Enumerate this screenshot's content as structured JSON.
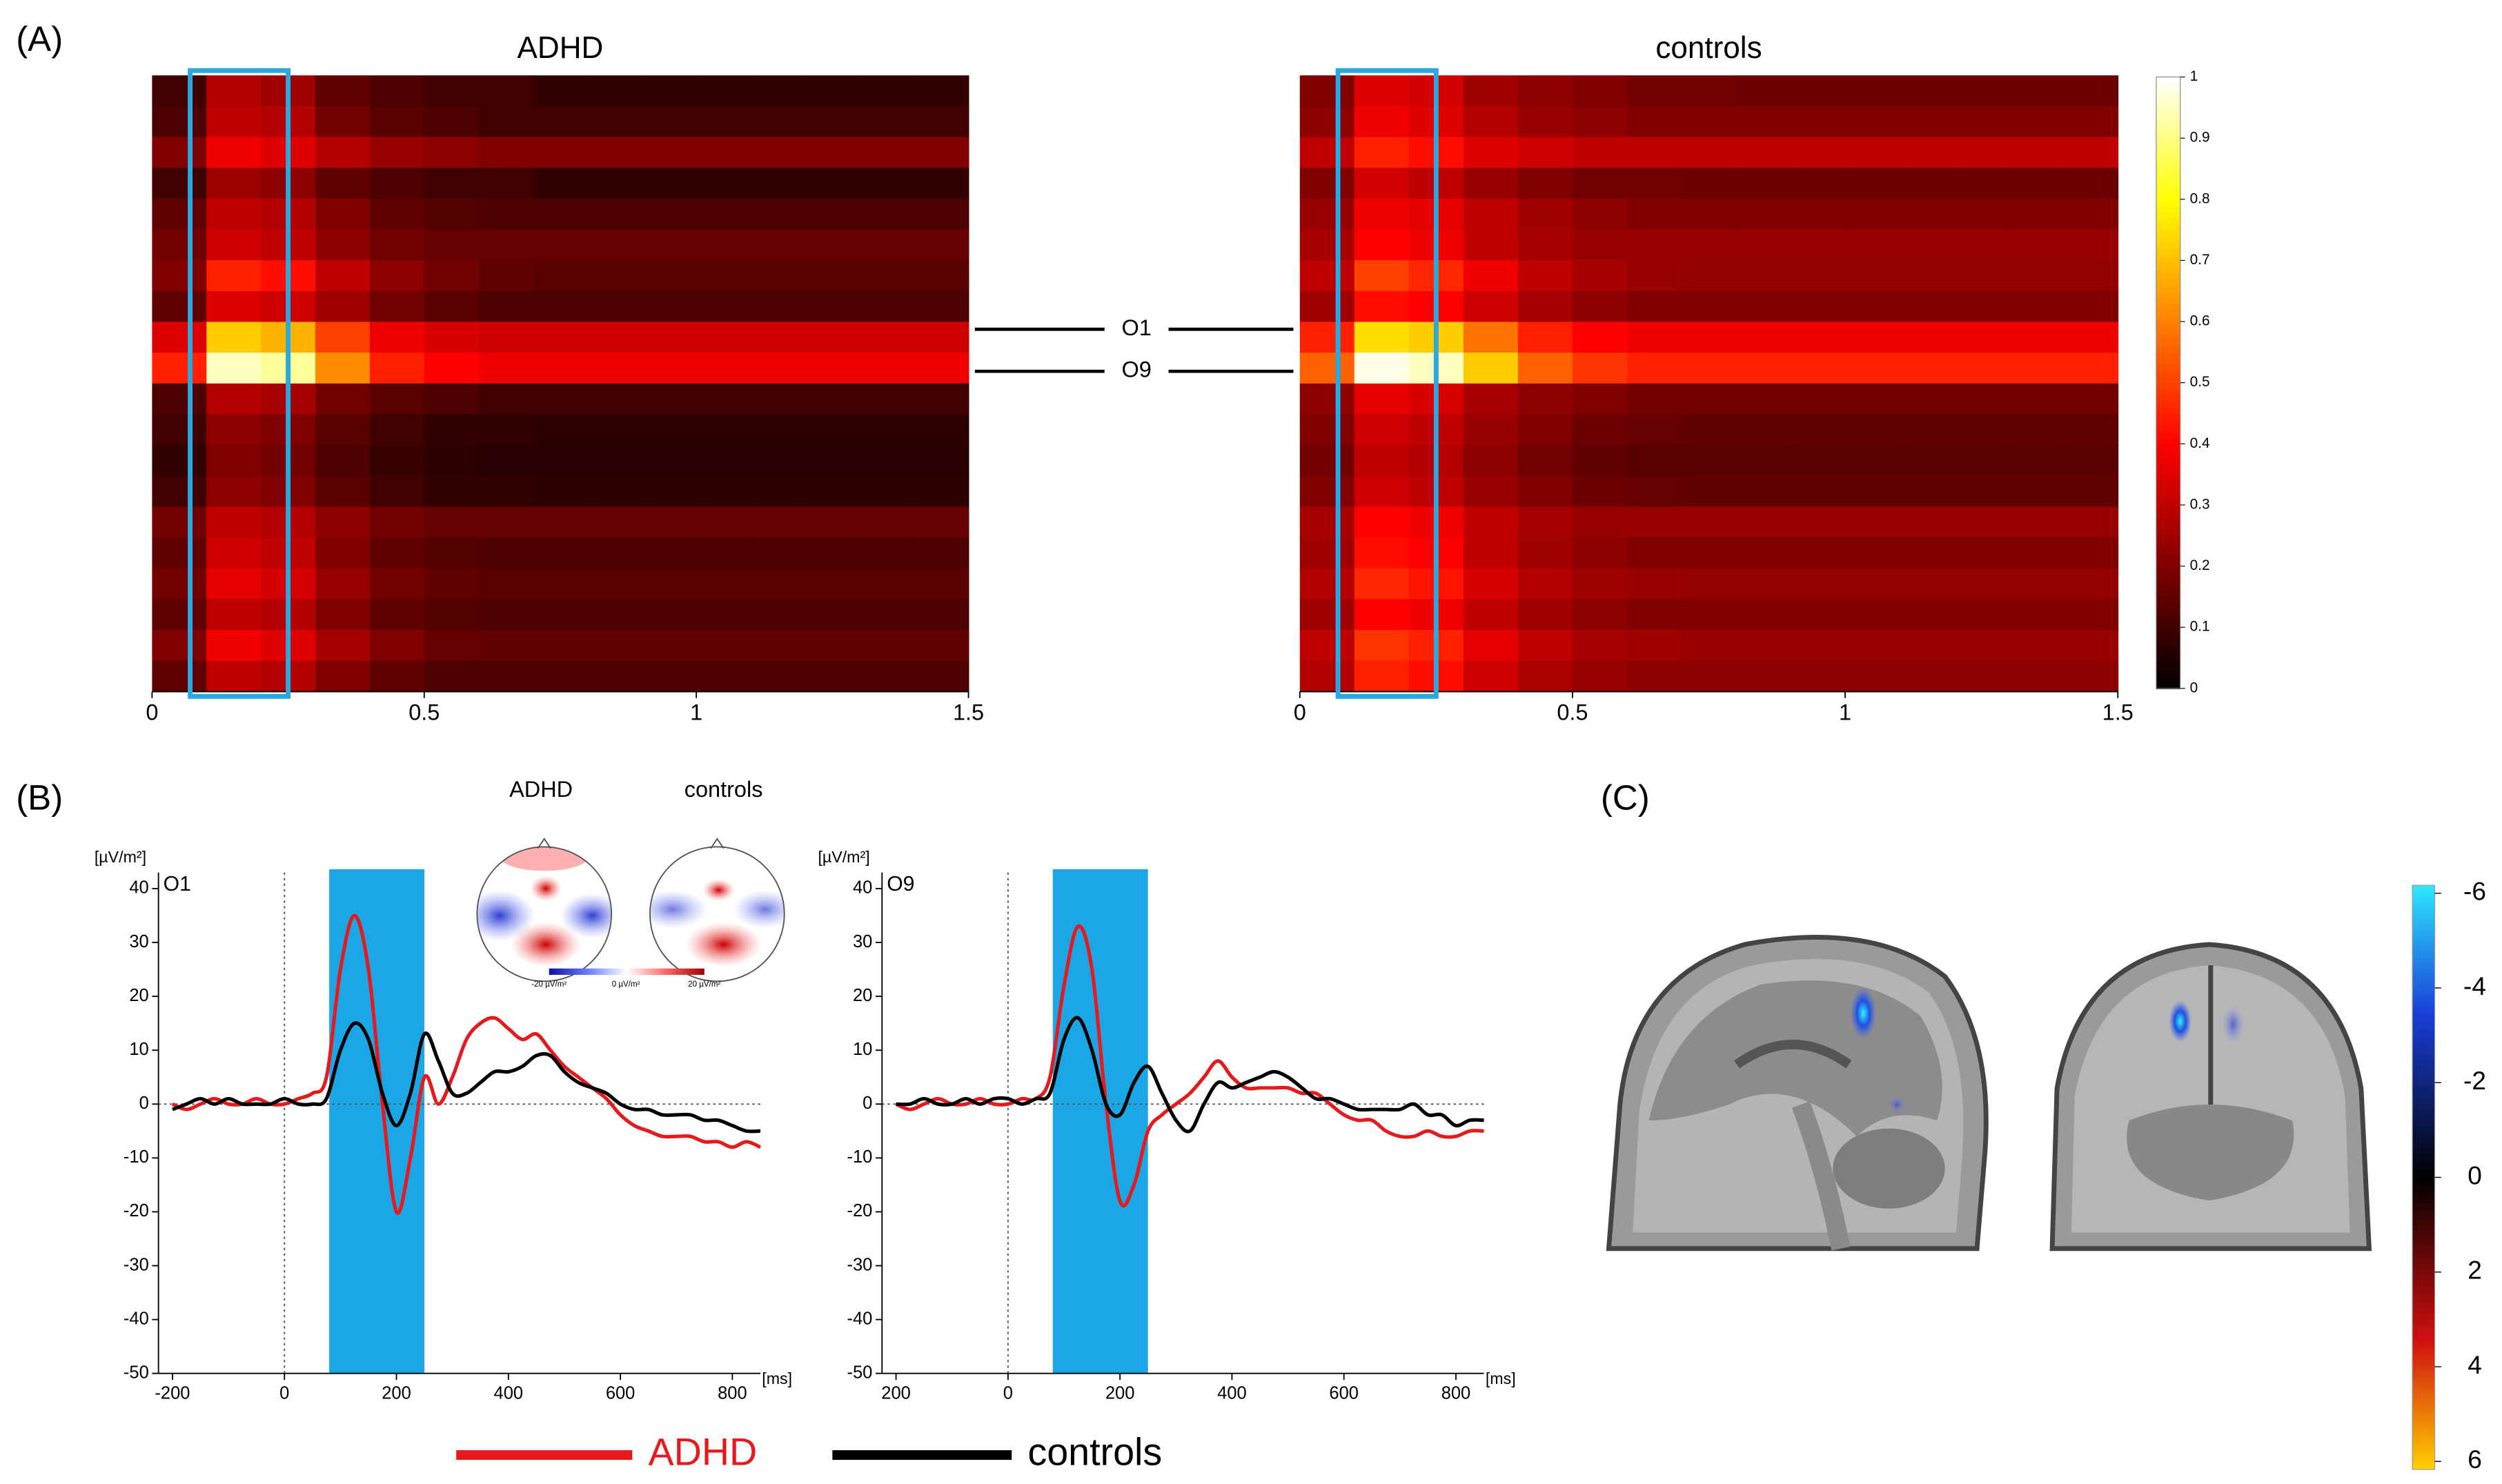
{
  "panels": [
    "(A)",
    "(B)",
    "(C)"
  ],
  "chart_data": [
    {
      "type": "heatmap",
      "title": "ADHD",
      "xlim": [
        0,
        1.5
      ],
      "xticks": [
        0,
        0.5,
        1,
        1.5
      ],
      "zlim": [
        0,
        1
      ],
      "highlight": [
        0.07,
        0.25
      ],
      "categories": [
        null,
        null,
        null,
        null,
        null,
        null,
        null,
        null,
        "O1",
        "O9",
        null,
        null,
        null,
        null,
        null,
        null,
        null,
        null,
        null,
        null
      ],
      "z": [
        [
          0.1,
          0.28,
          0.25,
          0.15,
          0.12,
          0.1,
          0.1,
          0.08,
          0.08,
          0.08,
          0.08,
          0.08,
          0.08,
          0.08,
          0.08
        ],
        [
          0.12,
          0.3,
          0.28,
          0.18,
          0.14,
          0.12,
          0.1,
          0.1,
          0.1,
          0.1,
          0.1,
          0.1,
          0.1,
          0.1,
          0.1
        ],
        [
          0.2,
          0.38,
          0.35,
          0.28,
          0.24,
          0.22,
          0.2,
          0.2,
          0.2,
          0.2,
          0.2,
          0.2,
          0.2,
          0.2,
          0.2
        ],
        [
          0.1,
          0.25,
          0.22,
          0.15,
          0.12,
          0.1,
          0.1,
          0.08,
          0.08,
          0.08,
          0.08,
          0.08,
          0.08,
          0.08,
          0.08
        ],
        [
          0.15,
          0.3,
          0.28,
          0.2,
          0.15,
          0.13,
          0.12,
          0.12,
          0.12,
          0.12,
          0.12,
          0.12,
          0.12,
          0.12,
          0.12
        ],
        [
          0.18,
          0.32,
          0.3,
          0.22,
          0.18,
          0.16,
          0.16,
          0.16,
          0.16,
          0.16,
          0.16,
          0.16,
          0.16,
          0.16,
          0.16
        ],
        [
          0.2,
          0.45,
          0.42,
          0.3,
          0.22,
          0.18,
          0.15,
          0.14,
          0.14,
          0.14,
          0.14,
          0.14,
          0.14,
          0.14,
          0.14
        ],
        [
          0.15,
          0.35,
          0.32,
          0.25,
          0.18,
          0.14,
          0.12,
          0.12,
          0.12,
          0.12,
          0.12,
          0.12,
          0.12,
          0.12,
          0.12
        ],
        [
          0.35,
          0.72,
          0.68,
          0.5,
          0.38,
          0.34,
          0.32,
          0.32,
          0.32,
          0.32,
          0.32,
          0.32,
          0.32,
          0.32,
          0.32
        ],
        [
          0.45,
          0.95,
          0.92,
          0.62,
          0.45,
          0.4,
          0.38,
          0.38,
          0.38,
          0.38,
          0.38,
          0.38,
          0.38,
          0.38,
          0.38
        ],
        [
          0.12,
          0.28,
          0.26,
          0.18,
          0.14,
          0.12,
          0.1,
          0.1,
          0.1,
          0.1,
          0.1,
          0.1,
          0.1,
          0.1,
          0.1
        ],
        [
          0.1,
          0.22,
          0.2,
          0.14,
          0.1,
          0.08,
          0.08,
          0.07,
          0.07,
          0.07,
          0.07,
          0.07,
          0.07,
          0.07,
          0.07
        ],
        [
          0.08,
          0.2,
          0.18,
          0.12,
          0.09,
          0.07,
          0.06,
          0.06,
          0.06,
          0.06,
          0.06,
          0.06,
          0.06,
          0.06,
          0.06
        ],
        [
          0.1,
          0.22,
          0.2,
          0.14,
          0.1,
          0.08,
          0.08,
          0.07,
          0.07,
          0.07,
          0.07,
          0.07,
          0.07,
          0.07,
          0.07
        ],
        [
          0.18,
          0.3,
          0.28,
          0.22,
          0.18,
          0.16,
          0.16,
          0.16,
          0.16,
          0.16,
          0.16,
          0.16,
          0.16,
          0.16,
          0.16
        ],
        [
          0.15,
          0.32,
          0.3,
          0.2,
          0.15,
          0.13,
          0.12,
          0.12,
          0.12,
          0.12,
          0.12,
          0.12,
          0.12,
          0.12,
          0.12
        ],
        [
          0.18,
          0.36,
          0.33,
          0.24,
          0.18,
          0.15,
          0.14,
          0.14,
          0.14,
          0.14,
          0.14,
          0.14,
          0.14,
          0.14,
          0.14
        ],
        [
          0.15,
          0.3,
          0.28,
          0.2,
          0.15,
          0.13,
          0.12,
          0.12,
          0.12,
          0.12,
          0.12,
          0.12,
          0.12,
          0.12,
          0.12
        ],
        [
          0.2,
          0.38,
          0.35,
          0.26,
          0.2,
          0.16,
          0.15,
          0.15,
          0.15,
          0.15,
          0.15,
          0.15,
          0.15,
          0.15,
          0.15
        ],
        [
          0.15,
          0.3,
          0.28,
          0.2,
          0.15,
          0.12,
          0.12,
          0.12,
          0.12,
          0.12,
          0.12,
          0.12,
          0.12,
          0.12,
          0.12
        ]
      ]
    },
    {
      "type": "heatmap",
      "title": "controls",
      "xlim": [
        0,
        1.5
      ],
      "xticks": [
        0,
        0.5,
        1,
        1.5
      ],
      "zlim": [
        0,
        1
      ],
      "zticks": [
        0,
        0.1,
        0.2,
        0.3,
        0.4,
        0.5,
        0.6,
        0.7,
        0.8,
        0.9,
        1
      ],
      "highlight": [
        0.07,
        0.25
      ],
      "z": [
        [
          0.2,
          0.35,
          0.33,
          0.25,
          0.22,
          0.2,
          0.18,
          0.18,
          0.17,
          0.17,
          0.17,
          0.17,
          0.17,
          0.17,
          0.17
        ],
        [
          0.22,
          0.38,
          0.35,
          0.28,
          0.24,
          0.22,
          0.2,
          0.2,
          0.2,
          0.2,
          0.2,
          0.2,
          0.2,
          0.2,
          0.2
        ],
        [
          0.3,
          0.45,
          0.42,
          0.35,
          0.32,
          0.3,
          0.3,
          0.3,
          0.3,
          0.3,
          0.3,
          0.3,
          0.3,
          0.3,
          0.3
        ],
        [
          0.2,
          0.33,
          0.3,
          0.24,
          0.2,
          0.18,
          0.18,
          0.17,
          0.17,
          0.17,
          0.17,
          0.17,
          0.17,
          0.17,
          0.17
        ],
        [
          0.24,
          0.38,
          0.36,
          0.3,
          0.25,
          0.22,
          0.2,
          0.2,
          0.2,
          0.2,
          0.2,
          0.2,
          0.2,
          0.2,
          0.2
        ],
        [
          0.26,
          0.4,
          0.38,
          0.3,
          0.26,
          0.24,
          0.24,
          0.24,
          0.24,
          0.24,
          0.24,
          0.24,
          0.24,
          0.24,
          0.24
        ],
        [
          0.3,
          0.5,
          0.46,
          0.38,
          0.3,
          0.26,
          0.24,
          0.23,
          0.23,
          0.23,
          0.23,
          0.23,
          0.23,
          0.23,
          0.23
        ],
        [
          0.25,
          0.42,
          0.4,
          0.32,
          0.26,
          0.22,
          0.2,
          0.2,
          0.2,
          0.2,
          0.2,
          0.2,
          0.2,
          0.2,
          0.2
        ],
        [
          0.45,
          0.75,
          0.72,
          0.58,
          0.45,
          0.4,
          0.38,
          0.38,
          0.38,
          0.38,
          0.38,
          0.38,
          0.38,
          0.38,
          0.38
        ],
        [
          0.55,
          0.98,
          0.95,
          0.72,
          0.55,
          0.48,
          0.45,
          0.45,
          0.45,
          0.45,
          0.45,
          0.45,
          0.45,
          0.45,
          0.45
        ],
        [
          0.22,
          0.36,
          0.34,
          0.26,
          0.22,
          0.2,
          0.18,
          0.18,
          0.18,
          0.18,
          0.18,
          0.18,
          0.18,
          0.18,
          0.18
        ],
        [
          0.2,
          0.32,
          0.3,
          0.24,
          0.2,
          0.17,
          0.16,
          0.15,
          0.15,
          0.15,
          0.15,
          0.15,
          0.15,
          0.15,
          0.15
        ],
        [
          0.18,
          0.3,
          0.28,
          0.22,
          0.18,
          0.15,
          0.14,
          0.14,
          0.14,
          0.14,
          0.14,
          0.14,
          0.14,
          0.14,
          0.14
        ],
        [
          0.2,
          0.32,
          0.3,
          0.24,
          0.2,
          0.17,
          0.16,
          0.15,
          0.15,
          0.15,
          0.15,
          0.15,
          0.15,
          0.15,
          0.15
        ],
        [
          0.26,
          0.4,
          0.38,
          0.3,
          0.26,
          0.24,
          0.24,
          0.24,
          0.24,
          0.24,
          0.24,
          0.24,
          0.24,
          0.24,
          0.24
        ],
        [
          0.25,
          0.42,
          0.4,
          0.3,
          0.25,
          0.22,
          0.2,
          0.2,
          0.2,
          0.2,
          0.2,
          0.2,
          0.2,
          0.2,
          0.2
        ],
        [
          0.28,
          0.46,
          0.43,
          0.34,
          0.28,
          0.25,
          0.24,
          0.23,
          0.23,
          0.23,
          0.23,
          0.23,
          0.23,
          0.23,
          0.23
        ],
        [
          0.25,
          0.4,
          0.38,
          0.3,
          0.25,
          0.22,
          0.2,
          0.2,
          0.2,
          0.2,
          0.2,
          0.2,
          0.2,
          0.2,
          0.2
        ],
        [
          0.3,
          0.48,
          0.45,
          0.36,
          0.3,
          0.26,
          0.25,
          0.24,
          0.24,
          0.24,
          0.24,
          0.24,
          0.24,
          0.24,
          0.24
        ],
        [
          0.28,
          0.45,
          0.42,
          0.32,
          0.27,
          0.24,
          0.22,
          0.22,
          0.22,
          0.22,
          0.22,
          0.22,
          0.22,
          0.22,
          0.22
        ]
      ]
    },
    {
      "type": "line",
      "title": "O1",
      "ylabel": "[µV/m²]",
      "xlabel": "[ms]",
      "xlim": [
        -225,
        850
      ],
      "ylim": [
        -50,
        43
      ],
      "xticks": [
        -200,
        0,
        200,
        400,
        600,
        800
      ],
      "yticks": [
        -50,
        -40,
        -30,
        -20,
        -10,
        0,
        10,
        20,
        30,
        40
      ],
      "highlight": [
        80,
        250
      ],
      "inset": {
        "titles": [
          "ADHD",
          "controls"
        ],
        "scale_labels": [
          "-20 µV/m²",
          "0 µV/m²",
          "20 µV/m²"
        ]
      },
      "x": [
        -200,
        -175,
        -150,
        -125,
        -100,
        -75,
        -50,
        -25,
        0,
        25,
        50,
        75,
        100,
        125,
        150,
        175,
        200,
        225,
        250,
        275,
        300,
        325,
        350,
        375,
        400,
        425,
        450,
        475,
        500,
        525,
        550,
        575,
        600,
        625,
        650,
        675,
        700,
        725,
        750,
        775,
        800,
        825,
        850
      ],
      "series": [
        {
          "name": "ADHD",
          "color": "#e8191c",
          "values": [
            0,
            -1,
            0,
            1,
            0,
            0,
            1,
            0,
            0,
            1,
            2,
            5,
            25,
            35,
            25,
            0,
            -20,
            -10,
            5,
            0,
            5,
            12,
            15,
            16,
            14,
            12,
            13,
            10,
            7,
            5,
            3,
            1,
            -2,
            -4,
            -5,
            -6,
            -6,
            -6,
            -7,
            -7,
            -8,
            -7,
            -8
          ]
        },
        {
          "name": "controls",
          "color": "#000000",
          "values": [
            -1,
            0,
            1,
            0,
            1,
            0,
            0,
            0,
            1,
            0,
            0,
            1,
            10,
            15,
            12,
            2,
            -4,
            2,
            13,
            8,
            2,
            2,
            4,
            6,
            6,
            7,
            9,
            9,
            6,
            4,
            3,
            2,
            0,
            -1,
            -1,
            -2,
            -2,
            -2,
            -3,
            -3,
            -4,
            -5,
            -5
          ]
        }
      ]
    },
    {
      "type": "line",
      "title": "O9",
      "ylabel": "[µV/m²]",
      "xlabel": "[ms]",
      "xlim": [
        -225,
        850
      ],
      "ylim": [
        -50,
        43
      ],
      "xticks": [
        {
          "value": -200,
          "label": "200"
        },
        0,
        200,
        400,
        600,
        800
      ],
      "yticks": [
        -50,
        -40,
        -30,
        -20,
        -10,
        0,
        10,
        20,
        30,
        40
      ],
      "highlight": [
        80,
        250
      ],
      "x": [
        -200,
        -175,
        -150,
        -125,
        -100,
        -75,
        -50,
        -25,
        0,
        25,
        50,
        75,
        100,
        125,
        150,
        175,
        200,
        225,
        250,
        275,
        300,
        325,
        350,
        375,
        400,
        425,
        450,
        475,
        500,
        525,
        550,
        575,
        600,
        625,
        650,
        675,
        700,
        725,
        750,
        775,
        800,
        825,
        850
      ],
      "series": [
        {
          "color": "#e8191c",
          "values": [
            0,
            -1,
            0,
            1,
            0,
            0,
            1,
            0,
            0,
            1,
            1,
            5,
            22,
            33,
            25,
            0,
            -18,
            -15,
            -5,
            -2,
            0,
            2,
            5,
            8,
            5,
            3,
            3,
            3,
            3,
            2,
            2,
            0,
            -2,
            -3,
            -3,
            -5,
            -6,
            -6,
            -5,
            -6,
            -6,
            -5,
            -5
          ]
        },
        {
          "color": "#000000",
          "values": [
            0,
            0,
            1,
            0,
            0,
            1,
            0,
            1,
            1,
            0,
            1,
            2,
            12,
            16,
            10,
            0,
            -2,
            4,
            7,
            2,
            -3,
            -5,
            0,
            4,
            3,
            4,
            5,
            6,
            5,
            3,
            1,
            1,
            0,
            -1,
            -1,
            -1,
            -1,
            0,
            -2,
            -2,
            -4,
            -3,
            -3
          ]
        }
      ]
    }
  ],
  "panel_c": {
    "clim": [
      -6,
      6
    ],
    "ticks": [
      -6,
      -4,
      -2,
      0,
      2,
      4,
      6
    ]
  }
}
